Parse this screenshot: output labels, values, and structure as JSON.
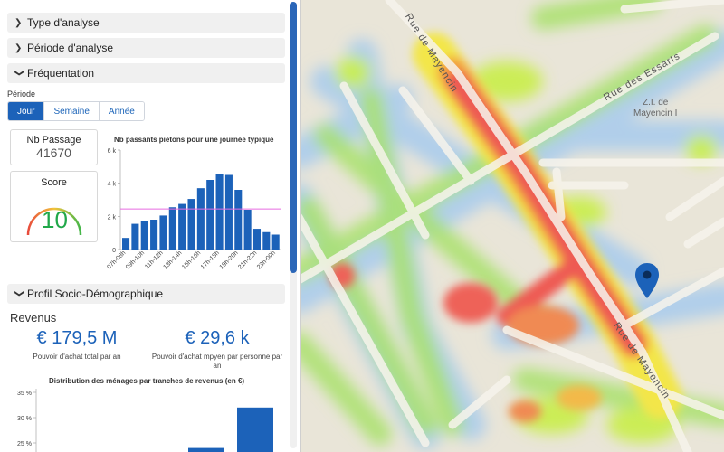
{
  "map": {
    "streets": [
      "Rue de Mayencin",
      "Rue des Essarts",
      "Rue de Mayencin"
    ],
    "place_label": [
      "Z.I. de",
      "Mayencin I"
    ],
    "marker_color": "#1c62b9"
  },
  "panel": {
    "sections": [
      {
        "label": "Type d'analyse",
        "expanded": false
      },
      {
        "label": "Période d'analyse",
        "expanded": false
      },
      {
        "label": "Fréquentation",
        "expanded": true
      },
      {
        "label": "Profil Socio-Démographique",
        "expanded": true
      }
    ],
    "periode_label": "Période",
    "periode_options": [
      "Jour",
      "Semaine",
      "Année"
    ],
    "periode_selected": "Jour",
    "nb_passage": {
      "title": "Nb Passage",
      "value": "41670"
    },
    "score": {
      "title": "Score",
      "value": "10"
    },
    "revenus": {
      "title": "Revenus",
      "total": {
        "value": "€ 179,5 M",
        "caption": "Pouvoir d'achat total par an"
      },
      "per_person": {
        "value": "€ 29,6 k",
        "caption": "Pouvoir d'achat mpyen par personne par an"
      }
    }
  },
  "chart_data": [
    {
      "type": "bar",
      "title": "Nb passants piétons pour une journée typique",
      "categories": [
        "07h-08h",
        "08h-09h",
        "09h-10h",
        "10h-11h",
        "11h-12h",
        "12h-13h",
        "13h-14h",
        "14h-15h",
        "15h-16h",
        "16h-17h",
        "17h-18h",
        "18h-19h",
        "19h-20h",
        "20h-21h",
        "21h-22h",
        "22h-23h",
        "23h-00h"
      ],
      "tick_labels": [
        "07h-08h",
        "09h-10h",
        "11h-12h",
        "13h-14h",
        "15h-16h",
        "17h-18h",
        "19h-20h",
        "21h-22h",
        "23h-00h"
      ],
      "values": [
        700,
        1550,
        1700,
        1800,
        2050,
        2550,
        2750,
        3050,
        3700,
        4200,
        4550,
        4500,
        3600,
        2400,
        1250,
        1050,
        900
      ],
      "reference_line": 2450,
      "ylim": [
        0,
        6000
      ],
      "yticks": [
        "0",
        "2 k",
        "4 k",
        "6 k"
      ],
      "colors": {
        "bar": "#1c62b9",
        "reference": "#e66be0"
      }
    },
    {
      "type": "bar",
      "title": "Distribution des ménages par tranches de revenus (en €)",
      "values": [
        19,
        24,
        32
      ],
      "ylim": [
        20,
        35
      ],
      "yticks": [
        "20 %",
        "25 %",
        "30 %",
        "35 %"
      ],
      "colors": {
        "bar": "#1c62b9"
      }
    }
  ]
}
